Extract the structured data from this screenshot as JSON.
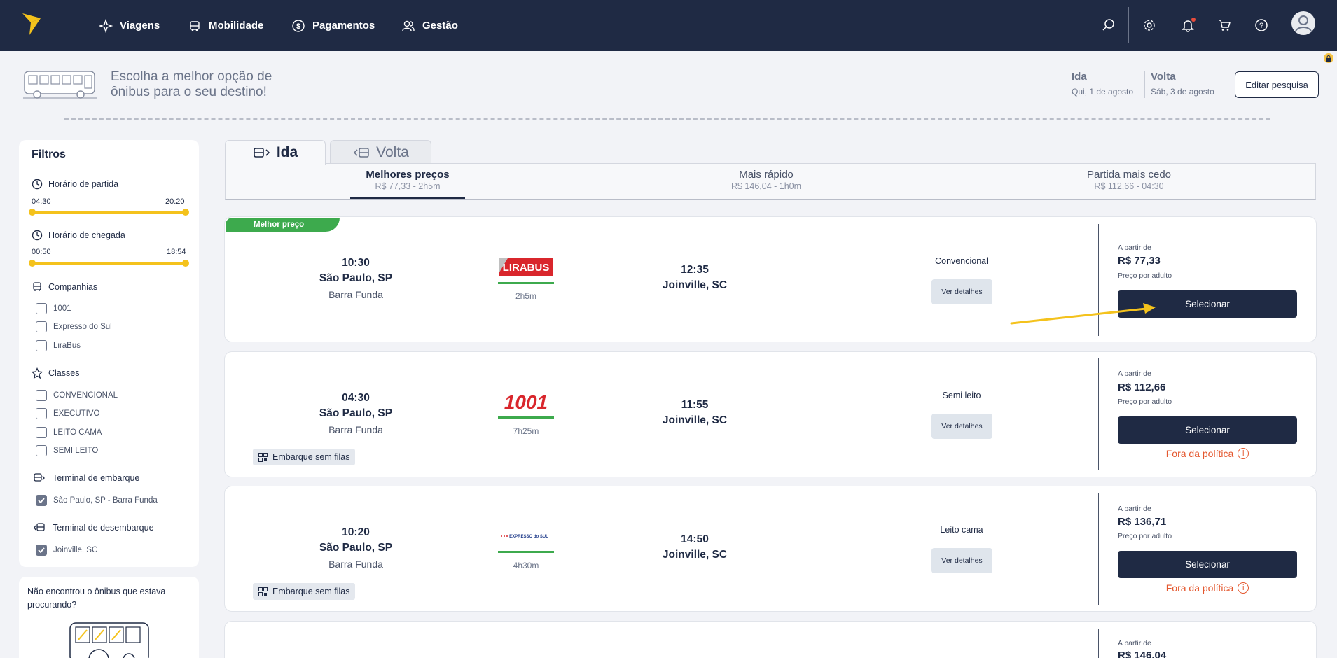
{
  "nav": {
    "items": [
      {
        "label": "Viagens",
        "icon": "plane-icon"
      },
      {
        "label": "Mobilidade",
        "icon": "car-icon"
      },
      {
        "label": "Pagamentos",
        "icon": "dollar-icon"
      },
      {
        "label": "Gestão",
        "icon": "users-icon"
      }
    ],
    "icons": [
      "search-icon",
      "gear-icon",
      "bell-icon",
      "cart-icon",
      "help-icon",
      "avatar-icon"
    ]
  },
  "header": {
    "title": "Escolha a melhor opção de ônibus para o seu destino!",
    "ida_label": "Ida",
    "ida_date": "Qui, 1 de agosto",
    "volta_label": "Volta",
    "volta_date": "Sáb, 3 de agosto",
    "edit_button": "Editar pesquisa"
  },
  "filters": {
    "title": "Filtros",
    "departure": {
      "label": "Horário de partida",
      "min": "04:30",
      "max": "20:20",
      "low": 0,
      "high": 1
    },
    "arrival": {
      "label": "Horário de chegada",
      "min": "00:50",
      "max": "18:54",
      "low": 0,
      "high": 1
    },
    "companies": {
      "label": "Companhias",
      "options": [
        {
          "label": "1001",
          "checked": false
        },
        {
          "label": "Expresso do Sul",
          "checked": false
        },
        {
          "label": "LiraBus",
          "checked": false
        }
      ]
    },
    "classes": {
      "label": "Classes",
      "options": [
        {
          "label": "CONVENCIONAL",
          "checked": false
        },
        {
          "label": "EXECUTIVO",
          "checked": false
        },
        {
          "label": "LEITO CAMA",
          "checked": false
        },
        {
          "label": "SEMI LEITO",
          "checked": false
        }
      ]
    },
    "boarding": {
      "label": "Terminal de embarque",
      "options": [
        {
          "label": "São Paulo, SP - Barra Funda",
          "checked": true
        }
      ]
    },
    "landing": {
      "label": "Terminal de desembarque",
      "options": [
        {
          "label": "Joinville, SC",
          "checked": true
        }
      ]
    },
    "notfound": "Não encontrou o ônibus que estava procurando?"
  },
  "tabs": {
    "ida": "Ida",
    "volta": "Volta"
  },
  "sort": [
    {
      "title": "Melhores preços",
      "sub": "R$ 77,33 - 2h5m"
    },
    {
      "title": "Mais rápido",
      "sub": "R$ 146,04 - 1h0m"
    },
    {
      "title": "Partida mais cedo",
      "sub": "R$ 112,66 - 04:30"
    }
  ],
  "results": [
    {
      "badge": "Melhor preço",
      "dep_time": "10:30",
      "dep_city": "São Paulo, SP",
      "dep_station": "Barra Funda",
      "company": "LiraBus",
      "company_logo_text": "LIRABUS",
      "duration": "2h5m",
      "arr_time": "12:35",
      "arr_city": "Joinville, SC",
      "class": "Convencional",
      "details": "Ver detalhes",
      "price_from": "A partir de",
      "price": "R$ 77,33",
      "price_adult": "Preço por adulto",
      "select": "Selecionar"
    },
    {
      "dep_time": "04:30",
      "dep_city": "São Paulo, SP",
      "dep_station": "Barra Funda",
      "company": "1001",
      "company_logo_text": "1001",
      "duration": "7h25m",
      "arr_time": "11:55",
      "arr_city": "Joinville, SC",
      "class": "Semi leito",
      "details": "Ver detalhes",
      "price_from": "A partir de",
      "price": "R$ 112,66",
      "price_adult": "Preço por adulto",
      "select": "Selecionar",
      "policy": "Fora da política",
      "feature": "Embarque sem filas"
    },
    {
      "dep_time": "10:20",
      "dep_city": "São Paulo, SP",
      "dep_station": "Barra Funda",
      "company": "Expresso do Sul",
      "company_logo_text": "EXPRESSO do SUL",
      "duration": "4h30m",
      "arr_time": "14:50",
      "arr_city": "Joinville, SC",
      "class": "Leito cama",
      "details": "Ver detalhes",
      "price_from": "A partir de",
      "price": "R$ 136,71",
      "price_adult": "Preço por adulto",
      "select": "Selecionar",
      "policy": "Fora da política",
      "feature": "Embarque sem filas"
    },
    {
      "price_from": "A partir de",
      "price": "R$ 146,04"
    }
  ],
  "colors": {
    "navy": "#1f2a44",
    "accent_yellow": "#f4c21c",
    "badge_green": "#3daa4d",
    "policy_red": "#e4572e"
  }
}
